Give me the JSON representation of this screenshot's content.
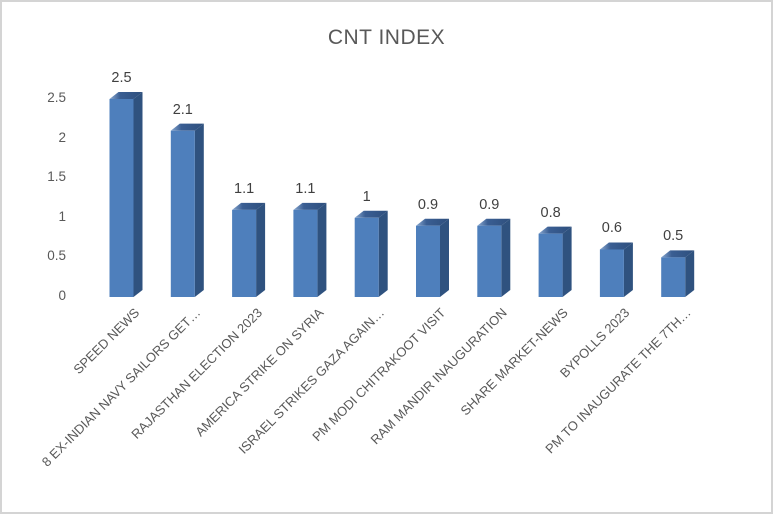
{
  "chart_data": {
    "type": "bar",
    "style": "3d-column",
    "title": "CNT INDEX",
    "categories": [
      "SPEED NEWS",
      "8 EX-INDIAN NAVY SAILORS GET…",
      "RAJASTHAN ELECTION 2023",
      "AMERICA STRIKE ON SYRIA",
      "ISRAEL STRIKES GAZA AGAIN…",
      "PM MODI CHITRAKOOT VISIT",
      "RAM MANDIR INAUGURATION",
      "SHARE MARKET-NEWS",
      "BYPOLLS 2023",
      "PM TO INAUGURATE THE 7TH…"
    ],
    "values": [
      2.5,
      2.1,
      1.1,
      1.1,
      1,
      0.9,
      0.9,
      0.8,
      0.6,
      0.5
    ],
    "data_labels": [
      "2.5",
      "2.1",
      "1.1",
      "1.1",
      "1",
      "0.9",
      "0.9",
      "0.8",
      "0.6",
      "0.5"
    ],
    "y_ticks": [
      "0",
      "0.5",
      "1",
      "1.5",
      "2",
      "2.5"
    ],
    "y_tick_values": [
      0,
      0.5,
      1,
      1.5,
      2,
      2.5
    ],
    "ylim": [
      0,
      2.5
    ],
    "xlabel": "",
    "ylabel": "",
    "grid": false,
    "legend": false,
    "colors": {
      "bar_front": "#4E7FBC",
      "bar_side": "#2F527F",
      "bar_top_light": "#8AA9D1",
      "bar_top_mid": "#3A5E93",
      "bar_top_dark": "#2E4F7D",
      "title_text": "#595959",
      "axis_text": "#595959",
      "data_label_text": "#404040",
      "frame_border": "#d4d4d4",
      "background": "#ffffff"
    }
  }
}
